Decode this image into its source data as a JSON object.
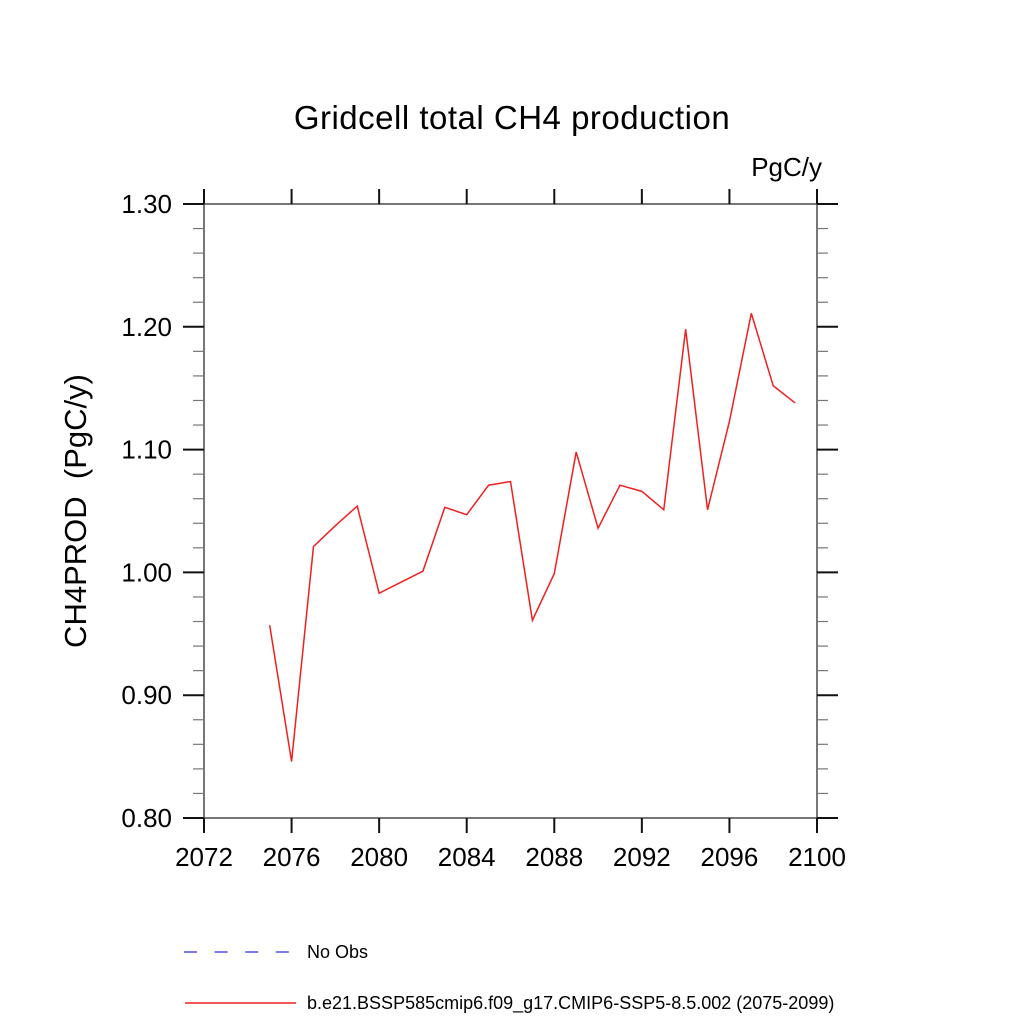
{
  "units_label": "PgC/y",
  "y_axis_title": "CH4PROD  (PgC/y)",
  "colors": {
    "series": "#ee2020",
    "no_obs": "#7b7bea",
    "axis": "#555555",
    "tick_major": "#111111",
    "tick_minor": "#777777",
    "text": "#000000"
  },
  "legend": [
    {
      "label": "No Obs",
      "style": "dashed"
    },
    {
      "label": "b.e21.BSSP585cmip6.f09_g17.CMIP6-SSP5-8.5.002 (2075-2099)",
      "style": "solid"
    }
  ],
  "chart_data": {
    "type": "line",
    "title": "Gridcell total CH4 production",
    "xlabel": "",
    "ylabel": "CH4PROD (PgC/y)",
    "units": "PgC/y",
    "grid": false,
    "legend_position": "bottom-left",
    "xlim": [
      2072,
      2100
    ],
    "ylim": [
      0.8,
      1.3
    ],
    "x_ticks": [
      2072,
      2076,
      2080,
      2084,
      2088,
      2092,
      2096,
      2100
    ],
    "y_ticks": [
      0.8,
      0.9,
      1.0,
      1.1,
      1.2,
      1.3
    ],
    "y_minor_step": 0.02,
    "x": [
      2075,
      2076,
      2077,
      2078,
      2079,
      2080,
      2081,
      2082,
      2083,
      2084,
      2085,
      2086,
      2087,
      2088,
      2089,
      2090,
      2091,
      2092,
      2093,
      2094,
      2095,
      2096,
      2097,
      2098,
      2099
    ],
    "series": [
      {
        "name": "b.e21.BSSP585cmip6.f09_g17.CMIP6-SSP5-8.5.002 (2075-2099)",
        "values": [
          0.957,
          0.846,
          1.021,
          1.038,
          1.054,
          0.983,
          0.992,
          1.001,
          1.053,
          1.047,
          1.071,
          1.074,
          0.961,
          0.999,
          1.098,
          1.036,
          1.071,
          1.066,
          1.051,
          1.198,
          1.051,
          1.123,
          1.211,
          1.152,
          1.138
        ]
      }
    ]
  }
}
